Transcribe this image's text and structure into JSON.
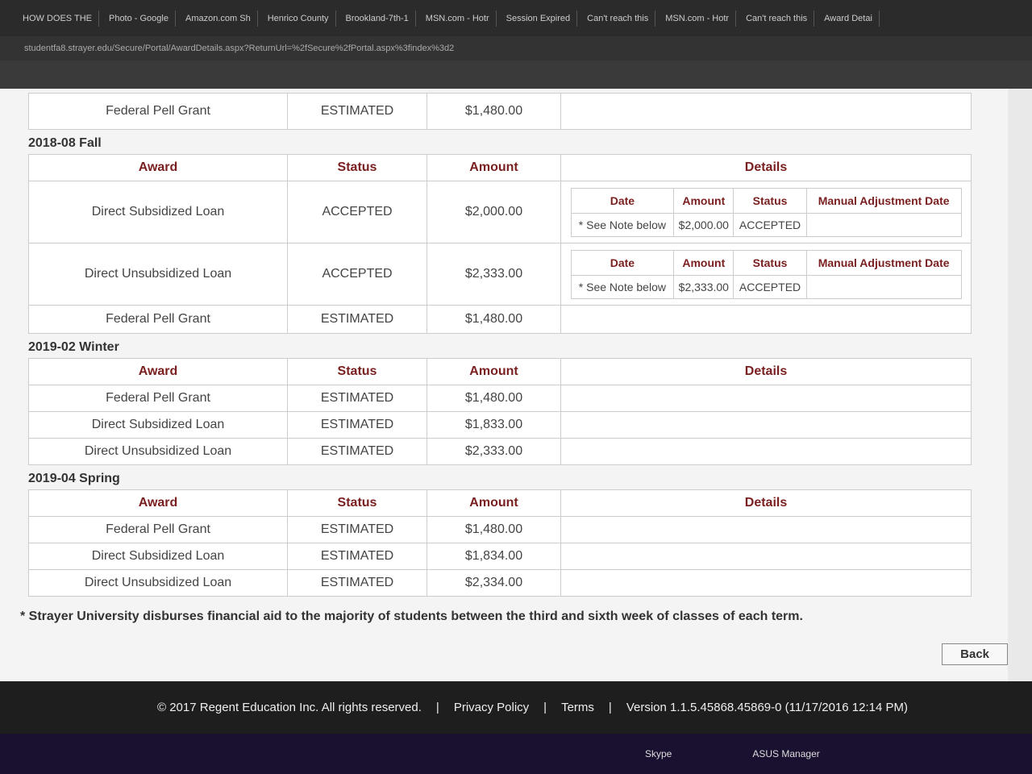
{
  "browser": {
    "tabs": [
      "HOW DOES THE",
      "Photo - Google",
      "Amazon.com Sh",
      "Henrico County",
      "Brookland-7th-1",
      "MSN.com - Hotr",
      "Session Expired",
      "Can't reach this",
      "MSN.com - Hotr",
      "Can't reach this",
      "Award Detai"
    ],
    "url": "studentfa8.strayer.edu/Secure/Portal/AwardDetails.aspx?ReturnUrl=%2fSecure%2fPortal.aspx%3findex%3d2"
  },
  "top_row": {
    "award": "Federal Pell Grant",
    "status": "ESTIMATED",
    "amount": "$1,480.00"
  },
  "headers": [
    "Award",
    "Status",
    "Amount",
    "Details"
  ],
  "detail_headers": [
    "Date",
    "Amount",
    "Status",
    "Manual Adjustment Date"
  ],
  "terms": [
    {
      "title": "2018-08 Fall",
      "rows": [
        {
          "award": "Direct Subsidized Loan",
          "status": "ACCEPTED",
          "amount": "$2,000.00",
          "details": [
            "* See Note below",
            "$2,000.00",
            "ACCEPTED"
          ]
        },
        {
          "award": "Direct Unsubsidized Loan",
          "status": "ACCEPTED",
          "amount": "$2,333.00",
          "details": [
            "* See Note below",
            "$2,333.00",
            "ACCEPTED"
          ]
        },
        {
          "award": "Federal Pell Grant",
          "status": "ESTIMATED",
          "amount": "$1,480.00"
        }
      ]
    },
    {
      "title": "2019-02 Winter",
      "rows": [
        {
          "award": "Federal Pell Grant",
          "status": "ESTIMATED",
          "amount": "$1,480.00"
        },
        {
          "award": "Direct Subsidized Loan",
          "status": "ESTIMATED",
          "amount": "$1,833.00"
        },
        {
          "award": "Direct Unsubsidized Loan",
          "status": "ESTIMATED",
          "amount": "$2,333.00"
        }
      ]
    },
    {
      "title": "2019-04 Spring",
      "rows": [
        {
          "award": "Federal Pell Grant",
          "status": "ESTIMATED",
          "amount": "$1,480.00"
        },
        {
          "award": "Direct Subsidized Loan",
          "status": "ESTIMATED",
          "amount": "$1,834.00"
        },
        {
          "award": "Direct Unsubsidized Loan",
          "status": "ESTIMATED",
          "amount": "$2,334.00"
        }
      ]
    }
  ],
  "footnote": "* Strayer University disburses financial aid to the majority of students between the third and sixth week of classes of each term.",
  "back_button": "Back",
  "footer": {
    "copyright": "© 2017 Regent Education Inc. All rights reserved.",
    "links": [
      "Privacy Policy",
      "Terms"
    ],
    "version": "Version 1.1.5.45868.45869-0 (11/17/2016 12:14 PM)"
  },
  "taskbar": [
    "Skype",
    "ASUS Manager"
  ]
}
